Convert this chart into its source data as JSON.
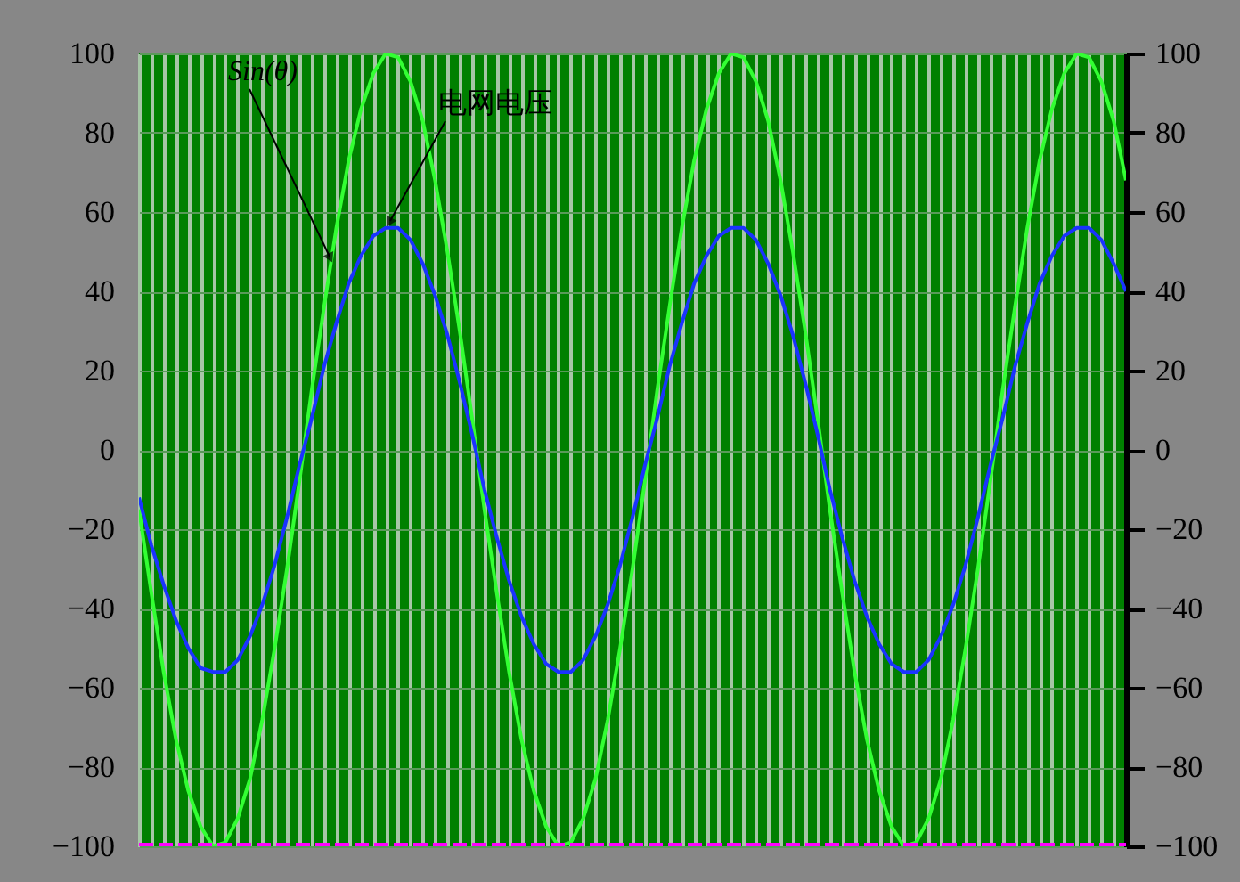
{
  "chart_data": {
    "type": "line",
    "categories": [
      null,
      null,
      null,
      null,
      null,
      null,
      null,
      null,
      null,
      null,
      null,
      null,
      null,
      null,
      null,
      null,
      null,
      null,
      null,
      null,
      null,
      null,
      null,
      null,
      null,
      null,
      null,
      null,
      null,
      null,
      null,
      null,
      null,
      null,
      null,
      null,
      null,
      null,
      null,
      null,
      null,
      null,
      null,
      null,
      null,
      null,
      null,
      null,
      null,
      null,
      null,
      null,
      null,
      null,
      null,
      null,
      null,
      null,
      null,
      null,
      null,
      null,
      null,
      null,
      null,
      null,
      null,
      null,
      null,
      null,
      null,
      null,
      null,
      null,
      null,
      null,
      null,
      null,
      null,
      null,
      null
    ],
    "series": [
      {
        "name": "Sin(θ)",
        "color": "#33ff33",
        "values": [
          -15,
          -36,
          -56,
          -73,
          -86,
          -95,
          -100,
          -99,
          -93,
          -83,
          -68,
          -50,
          -30,
          -8,
          15,
          36,
          56,
          73,
          86,
          95,
          100,
          99,
          93,
          83,
          68,
          50,
          30,
          8,
          -15,
          -36,
          -56,
          -73,
          -86,
          -95,
          -100,
          -99,
          -93,
          -83,
          -68,
          -50,
          -30,
          -8,
          15,
          36,
          56,
          73,
          86,
          95,
          100,
          99,
          93,
          83,
          68,
          50,
          30,
          8,
          -15,
          -36,
          -56,
          -73,
          -86,
          -95,
          -100,
          -99,
          -93,
          -83,
          -68,
          -50,
          -30,
          -8,
          15,
          36,
          56,
          73,
          86,
          95,
          100,
          99,
          93,
          83,
          68
        ]
      },
      {
        "name": "电网电压",
        "color": "#1a33ff",
        "values": [
          -12,
          -24,
          -34,
          -43,
          -50,
          -55,
          -56,
          -56,
          -53,
          -47,
          -39,
          -29,
          -17,
          -4,
          8,
          21,
          32,
          42,
          49,
          54,
          56,
          56,
          53,
          47,
          39,
          29,
          17,
          4,
          -10,
          -22,
          -33,
          -42,
          -49,
          -54,
          -56,
          -56,
          -53,
          -47,
          -39,
          -29,
          -17,
          -4,
          8,
          21,
          32,
          42,
          49,
          54,
          56,
          56,
          53,
          47,
          39,
          29,
          17,
          4,
          -10,
          -22,
          -33,
          -42,
          -49,
          -54,
          -56,
          -56,
          -53,
          -47,
          -39,
          -29,
          -17,
          -4,
          8,
          21,
          32,
          42,
          49,
          54,
          56,
          56,
          53,
          47,
          40
        ]
      },
      {
        "color": "#ff00ff",
        "line_style": "dashed",
        "values": [
          -100,
          -100,
          -100,
          -100,
          -100,
          -100,
          -100,
          -100,
          -100,
          -100,
          -100,
          -100,
          -100,
          -100,
          -100,
          -100,
          -100,
          -100,
          -100,
          -100,
          -100,
          -100,
          -100,
          -100,
          -100,
          -100,
          -100,
          -100,
          -100,
          -100,
          -100,
          -100,
          -100,
          -100,
          -100,
          -100,
          -100,
          -100,
          -100,
          -100,
          -100,
          -100,
          -100,
          -100,
          -100,
          -100,
          -100,
          -100,
          -100,
          -100,
          -100,
          -100,
          -100,
          -100,
          -100,
          -100,
          -100,
          -100,
          -100,
          -100,
          -100,
          -100,
          -100,
          -100,
          -100,
          -100,
          -100,
          -100,
          -100,
          -100,
          -100,
          -100,
          -100,
          -100,
          -100,
          -100,
          -100,
          -100,
          -100,
          -100,
          -100
        ]
      }
    ],
    "ylim": [
      -100,
      100
    ],
    "yticks": [
      -100,
      -80,
      -60,
      -40,
      -20,
      0,
      20,
      40,
      60,
      80,
      100
    ],
    "y2lim": [
      -100,
      100
    ],
    "y2ticks": [
      -100,
      -80,
      -60,
      -40,
      -20,
      0,
      20,
      40,
      60,
      80,
      100
    ],
    "grid": true
  }
}
